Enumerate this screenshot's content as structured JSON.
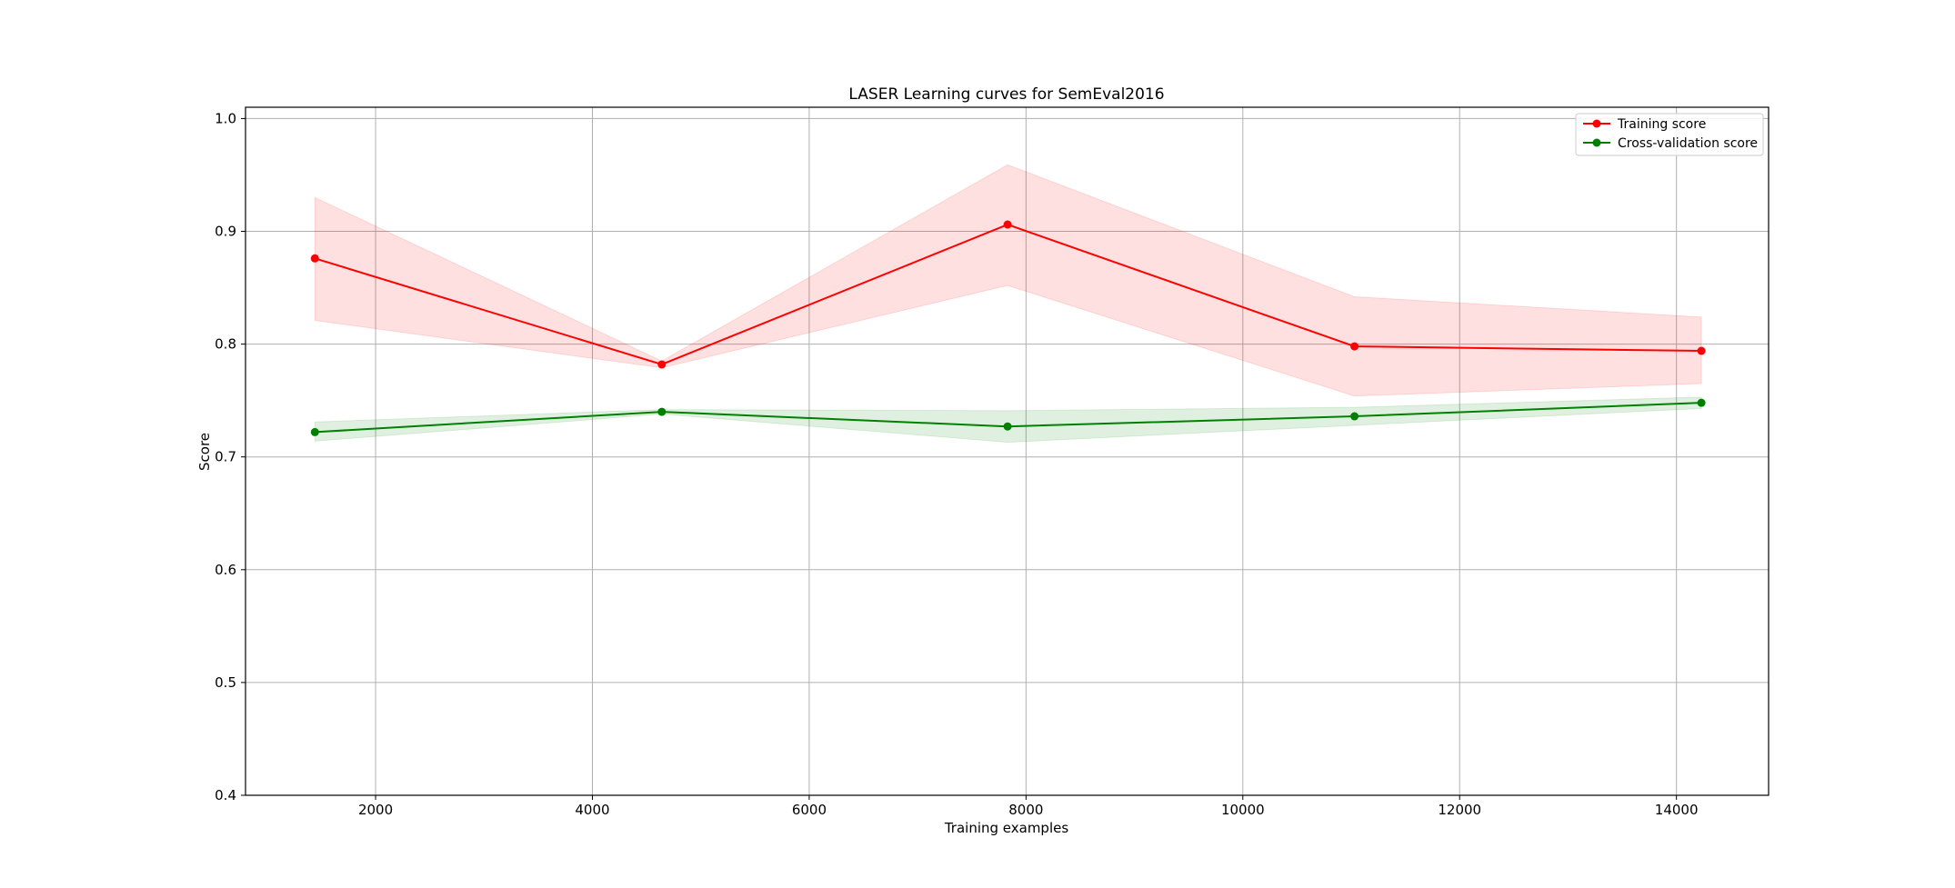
{
  "chart_data": {
    "type": "line",
    "title": "LASER Learning curves for SemEval2016",
    "xlabel": "Training examples",
    "ylabel": "Score",
    "xlim": [
      800,
      14850
    ],
    "ylim": [
      0.4,
      1.01
    ],
    "xticks": [
      2000,
      4000,
      6000,
      8000,
      10000,
      12000,
      14000
    ],
    "yticks": [
      0.4,
      0.5,
      0.6,
      0.7,
      0.8,
      0.9,
      1.0
    ],
    "xtick_labels": [
      "2000",
      "4000",
      "6000",
      "8000",
      "10000",
      "12000",
      "14000"
    ],
    "ytick_labels": [
      "0.4",
      "0.5",
      "0.6",
      "0.7",
      "0.8",
      "0.9",
      "1.0"
    ],
    "grid": true,
    "legend_position": "top-right",
    "x": [
      1440,
      4640,
      7830,
      11030,
      14230
    ],
    "series": [
      {
        "name": "Training score",
        "color": "#ff0000",
        "band_color": "#ff0000",
        "values": [
          0.876,
          0.782,
          0.906,
          0.798,
          0.794
        ],
        "lower": [
          0.821,
          0.779,
          0.852,
          0.754,
          0.765
        ],
        "upper": [
          0.93,
          0.785,
          0.959,
          0.842,
          0.824
        ]
      },
      {
        "name": "Cross-validation score",
        "color": "#008000",
        "band_color": "#008000",
        "values": [
          0.722,
          0.74,
          0.727,
          0.736,
          0.748
        ],
        "lower": [
          0.714,
          0.738,
          0.713,
          0.728,
          0.743
        ],
        "upper": [
          0.731,
          0.742,
          0.741,
          0.744,
          0.753
        ]
      }
    ]
  }
}
